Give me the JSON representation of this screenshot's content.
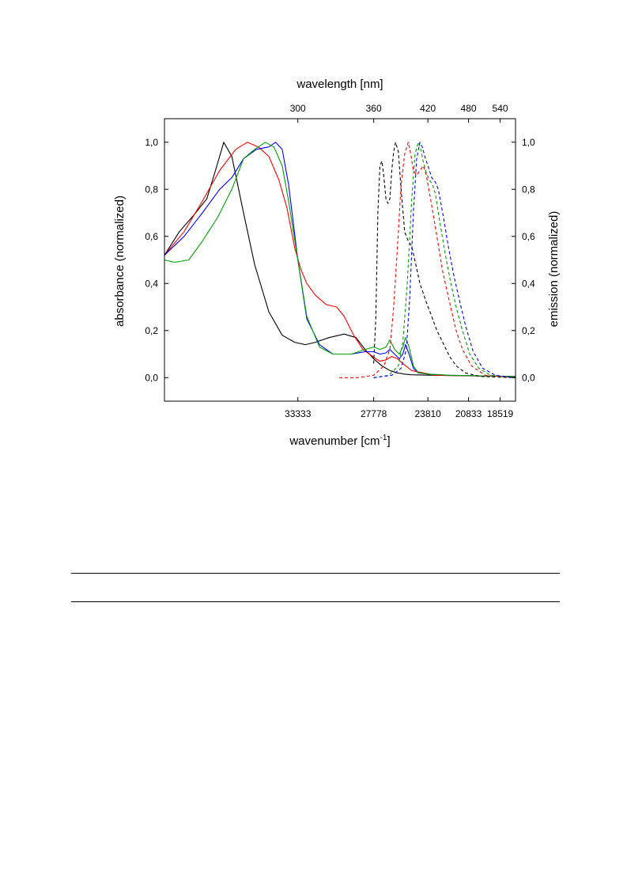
{
  "chart_data": {
    "type": "line",
    "title": "",
    "xlabel": "wavenumber [cm",
    "xlabel_sup": "-1",
    "xlabel_end": "]",
    "x2label": "wavelength [nm]",
    "ylabel": "absorbance (normalized)",
    "y2label": "emission (normalized)",
    "x_axis": "wavenumber",
    "x_range_nm": [
      232,
      575
    ],
    "ylim": [
      -0.1,
      1.1
    ],
    "y_ticks": [
      0.0,
      0.2,
      0.4,
      0.6,
      0.8,
      1.0
    ],
    "y_tick_labels": [
      "0,0",
      "0,2",
      "0,4",
      "0,6",
      "0,8",
      "1,0"
    ],
    "x_bottom_ticks": [
      {
        "nm": 300,
        "label": "33333"
      },
      {
        "nm": 360,
        "label": "27778"
      },
      {
        "nm": 420,
        "label": "23810"
      },
      {
        "nm": 480,
        "label": "20833"
      },
      {
        "nm": 540,
        "label": "18519"
      }
    ],
    "x_top_ticks": [
      {
        "nm": 300,
        "label": "300"
      },
      {
        "nm": 360,
        "label": "360"
      },
      {
        "nm": 420,
        "label": "420"
      },
      {
        "nm": 480,
        "label": "480"
      },
      {
        "nm": 540,
        "label": "540"
      }
    ],
    "grid": false,
    "legend": "none",
    "series": [
      {
        "kind": "absorbance",
        "color": "#000000",
        "dash": false,
        "x_nm": [
          232,
          238,
          245,
          250,
          254,
          258,
          262,
          268,
          274,
          282,
          290,
          298,
          305,
          312,
          322,
          334,
          344,
          352,
          360,
          368,
          376,
          384,
          392,
          400,
          430,
          575
        ],
        "y": [
          0.52,
          0.62,
          0.7,
          0.76,
          0.88,
          1.0,
          0.94,
          0.7,
          0.48,
          0.28,
          0.18,
          0.15,
          0.14,
          0.15,
          0.17,
          0.185,
          0.17,
          0.12,
          0.08,
          0.05,
          0.03,
          0.02,
          0.015,
          0.012,
          0.01,
          0.005
        ]
      },
      {
        "kind": "absorbance",
        "color": "#ff0000",
        "dash": false,
        "x_nm": [
          232,
          240,
          248,
          256,
          264,
          270,
          276,
          282,
          288,
          293,
          298,
          302,
          306,
          312,
          320,
          328,
          334,
          342,
          350,
          356,
          362,
          366,
          372,
          378,
          384,
          390,
          400,
          430,
          575
        ],
        "y": [
          0.52,
          0.62,
          0.75,
          0.88,
          0.97,
          1.0,
          0.98,
          0.94,
          0.84,
          0.72,
          0.55,
          0.46,
          0.4,
          0.35,
          0.31,
          0.3,
          0.26,
          0.18,
          0.12,
          0.1,
          0.08,
          0.07,
          0.075,
          0.09,
          0.08,
          0.06,
          0.03,
          0.01,
          0.005
        ]
      },
      {
        "kind": "absorbance",
        "color": "#0000ff",
        "dash": false,
        "x_nm": [
          232,
          240,
          248,
          256,
          262,
          268,
          275,
          282,
          286,
          290,
          294,
          300,
          306,
          315,
          325,
          340,
          352,
          360,
          366,
          372,
          376,
          381,
          386,
          390,
          393,
          397,
          402,
          408,
          420,
          450,
          575
        ],
        "y": [
          0.52,
          0.6,
          0.7,
          0.8,
          0.85,
          0.93,
          0.97,
          0.98,
          1.0,
          0.97,
          0.82,
          0.5,
          0.25,
          0.14,
          0.1,
          0.1,
          0.11,
          0.11,
          0.1,
          0.105,
          0.12,
          0.1,
          0.08,
          0.1,
          0.14,
          0.1,
          0.04,
          0.02,
          0.015,
          0.01,
          0.005
        ]
      },
      {
        "kind": "absorbance",
        "color": "#00a000",
        "dash": false,
        "x_nm": [
          232,
          236,
          242,
          248,
          255,
          262,
          268,
          274,
          280,
          285,
          290,
          294,
          300,
          306,
          315,
          325,
          340,
          352,
          360,
          366,
          372,
          376,
          381,
          386,
          390,
          393,
          397,
          402,
          408,
          420,
          450,
          575
        ],
        "y": [
          0.5,
          0.49,
          0.5,
          0.58,
          0.68,
          0.8,
          0.93,
          0.97,
          1.0,
          0.98,
          0.9,
          0.75,
          0.5,
          0.26,
          0.13,
          0.1,
          0.1,
          0.12,
          0.13,
          0.12,
          0.13,
          0.16,
          0.12,
          0.1,
          0.13,
          0.17,
          0.13,
          0.05,
          0.02,
          0.015,
          0.01,
          0.005
        ]
      },
      {
        "kind": "emission",
        "color": "#000000",
        "dash": true,
        "x_nm": [
          360,
          362,
          364,
          366,
          368,
          370,
          372,
          374,
          376,
          378,
          380,
          382,
          385,
          388,
          392,
          396,
          400,
          405,
          410,
          418,
          425,
          432,
          440,
          450,
          460,
          475,
          500,
          575
        ],
        "y": [
          0.06,
          0.25,
          0.7,
          0.9,
          0.92,
          0.85,
          0.76,
          0.74,
          0.76,
          0.88,
          0.96,
          1.0,
          0.96,
          0.8,
          0.62,
          0.58,
          0.56,
          0.48,
          0.4,
          0.32,
          0.26,
          0.2,
          0.15,
          0.09,
          0.05,
          0.02,
          0.005,
          0.0
        ]
      },
      {
        "kind": "emission",
        "color": "#ff0000",
        "dash": true,
        "x_nm": [
          330,
          345,
          360,
          370,
          376,
          380,
          384,
          388,
          392,
          396,
          399,
          402,
          406,
          410,
          414,
          418,
          424,
          432,
          440,
          450,
          460,
          470,
          485,
          510,
          575
        ],
        "y": [
          0.0,
          0.0,
          0.01,
          0.05,
          0.12,
          0.3,
          0.55,
          0.82,
          0.95,
          1.0,
          0.95,
          0.88,
          0.86,
          0.88,
          0.9,
          0.86,
          0.75,
          0.6,
          0.45,
          0.32,
          0.2,
          0.12,
          0.05,
          0.01,
          0.0
        ]
      },
      {
        "kind": "emission",
        "color": "#00a000",
        "dash": true,
        "x_nm": [
          360,
          375,
          385,
          390,
          395,
          400,
          404,
          408,
          411,
          414,
          418,
          422,
          426,
          430,
          436,
          444,
          452,
          460,
          470,
          482,
          498,
          520,
          575
        ],
        "y": [
          0.0,
          0.01,
          0.05,
          0.15,
          0.4,
          0.75,
          0.95,
          1.0,
          0.97,
          0.92,
          0.87,
          0.84,
          0.82,
          0.78,
          0.66,
          0.52,
          0.4,
          0.3,
          0.2,
          0.1,
          0.04,
          0.01,
          0.0
        ]
      },
      {
        "kind": "emission",
        "color": "#0000ff",
        "dash": true,
        "x_nm": [
          360,
          378,
          388,
          394,
          398,
          402,
          406,
          410,
          413,
          416,
          420,
          425,
          430,
          434,
          440,
          448,
          456,
          465,
          475,
          488,
          505,
          530,
          575
        ],
        "y": [
          0.0,
          0.01,
          0.04,
          0.12,
          0.35,
          0.7,
          0.93,
          1.0,
          0.98,
          0.94,
          0.9,
          0.85,
          0.83,
          0.8,
          0.7,
          0.56,
          0.44,
          0.33,
          0.22,
          0.11,
          0.04,
          0.01,
          0.0
        ]
      }
    ]
  }
}
